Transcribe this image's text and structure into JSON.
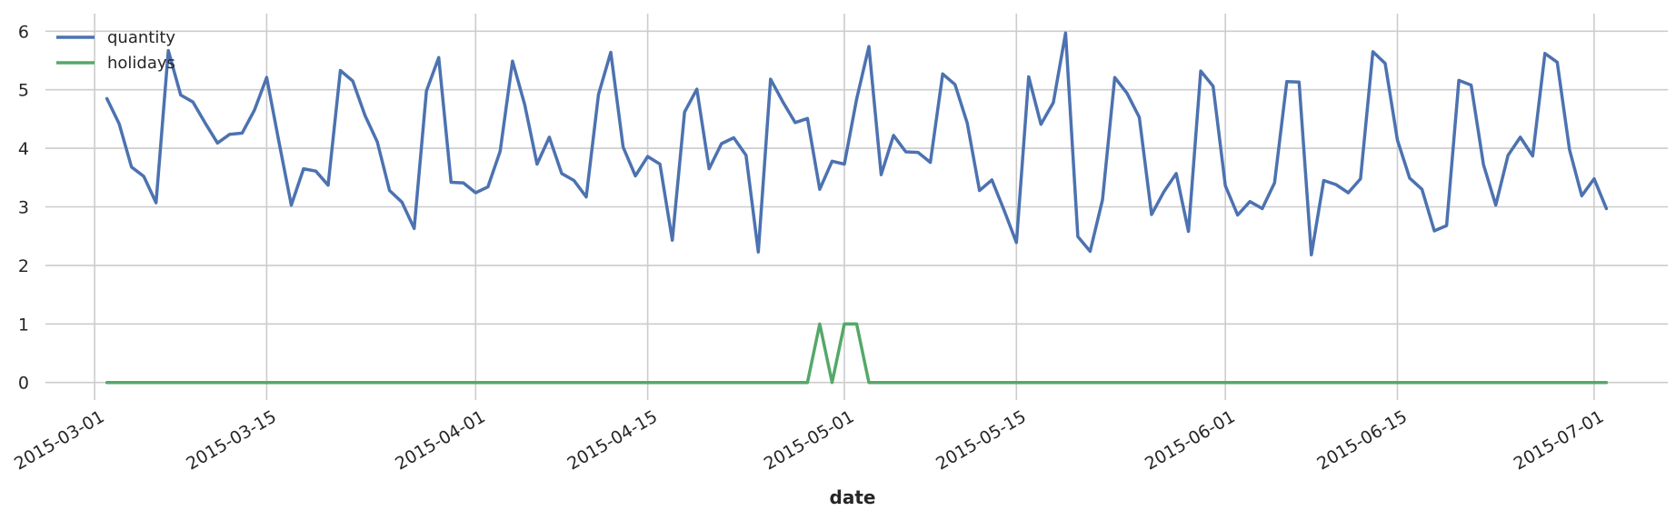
{
  "chart_data": {
    "type": "line",
    "title": "",
    "xlabel": "date",
    "ylabel": "",
    "x_start": "2015-03-02",
    "x_end": "2015-07-02",
    "xlim": [
      "2015-02-25",
      "2015-07-07"
    ],
    "ylim": [
      -0.3,
      6.3
    ],
    "grid": true,
    "legend_position": "top-left",
    "x_ticks": [
      "2015-03-01",
      "2015-03-15",
      "2015-04-01",
      "2015-04-15",
      "2015-05-01",
      "2015-05-15",
      "2015-06-01",
      "2015-06-15",
      "2015-07-01"
    ],
    "y_ticks": [
      "0",
      "1",
      "2",
      "3",
      "4",
      "5",
      "6"
    ],
    "series": [
      {
        "name": "quantity",
        "color": "#4c72b0",
        "values": [
          4.85,
          4.42,
          3.68,
          3.52,
          3.07,
          5.67,
          4.91,
          4.79,
          4.43,
          4.09,
          4.24,
          4.26,
          4.65,
          5.21,
          4.11,
          3.03,
          3.65,
          3.61,
          3.37,
          5.33,
          5.15,
          4.56,
          4.11,
          3.28,
          3.08,
          2.63,
          4.98,
          5.55,
          3.42,
          3.41,
          3.24,
          3.34,
          3.95,
          5.49,
          4.74,
          3.73,
          4.19,
          3.57,
          3.45,
          3.17,
          4.92,
          5.64,
          4.02,
          3.53,
          3.86,
          3.73,
          2.43,
          4.62,
          5.01,
          3.65,
          4.08,
          4.18,
          3.88,
          2.23,
          5.18,
          4.79,
          4.44,
          4.51,
          3.3,
          3.78,
          3.73,
          4.84,
          5.74,
          3.55,
          4.22,
          3.94,
          3.93,
          3.76,
          5.27,
          5.09,
          4.43,
          3.28,
          3.46,
          2.94,
          2.39,
          5.22,
          4.41,
          4.78,
          5.97,
          2.49,
          2.24,
          3.12,
          5.21,
          4.94,
          4.53,
          2.87,
          3.26,
          3.57,
          2.58,
          5.32,
          5.06,
          3.36,
          2.86,
          3.09,
          2.97,
          3.41,
          5.14,
          5.13,
          2.18,
          3.45,
          3.38,
          3.24,
          3.48,
          5.65,
          5.45,
          4.14,
          3.49,
          3.3,
          2.59,
          2.68,
          5.16,
          5.08,
          3.72,
          3.03,
          3.88,
          4.19,
          3.87,
          5.62,
          5.47,
          3.98,
          3.19,
          3.48,
          2.97
        ]
      },
      {
        "name": "holidays",
        "color": "#55a868",
        "values": [
          0,
          0,
          0,
          0,
          0,
          0,
          0,
          0,
          0,
          0,
          0,
          0,
          0,
          0,
          0,
          0,
          0,
          0,
          0,
          0,
          0,
          0,
          0,
          0,
          0,
          0,
          0,
          0,
          0,
          0,
          0,
          0,
          0,
          0,
          0,
          0,
          0,
          0,
          0,
          0,
          0,
          0,
          0,
          0,
          0,
          0,
          0,
          0,
          0,
          0,
          0,
          0,
          0,
          0,
          0,
          0,
          0,
          0,
          1,
          0,
          1,
          1,
          0,
          0,
          0,
          0,
          0,
          0,
          0,
          0,
          0,
          0,
          0,
          0,
          0,
          0,
          0,
          0,
          0,
          0,
          0,
          0,
          0,
          0,
          0,
          0,
          0,
          0,
          0,
          0,
          0,
          0,
          0,
          0,
          0,
          0,
          0,
          0,
          0,
          0,
          0,
          0,
          0,
          0,
          0,
          0,
          0,
          0,
          0,
          0,
          0,
          0,
          0,
          0,
          0,
          0,
          0,
          0,
          0,
          0,
          0,
          0,
          0
        ]
      }
    ]
  }
}
